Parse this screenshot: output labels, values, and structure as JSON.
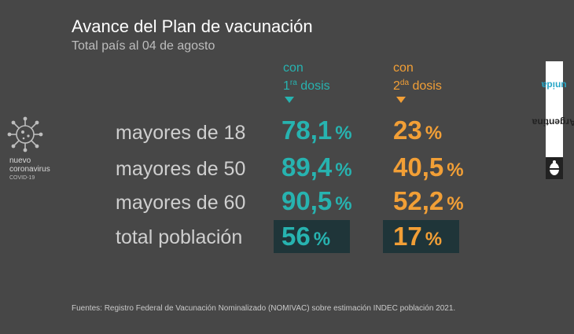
{
  "header": {
    "title": "Avance del Plan de vacunación",
    "subtitle": "Total país al 04 de agosto"
  },
  "columns": {
    "first": {
      "line1": "con",
      "num": "1",
      "sup": "ra",
      "word": "dosis"
    },
    "second": {
      "line1": "con",
      "num": "2",
      "sup": "da",
      "word": "dosis"
    }
  },
  "rows": [
    {
      "label": "mayores de 18",
      "dose1": "78,1",
      "dose2": "23"
    },
    {
      "label": "mayores de 50",
      "dose1": "89,4",
      "dose2": "40,5"
    },
    {
      "label": "mayores de 60",
      "dose1": "90,5",
      "dose2": "52,2"
    },
    {
      "label": "total población",
      "dose1": "56",
      "dose2": "17"
    }
  ],
  "percent_sign": "%",
  "logo": {
    "line1": "nuevo",
    "line2": "coronavirus",
    "line3": "COVID-19"
  },
  "brand": {
    "word1": "Argentina",
    "word2": "unida"
  },
  "footer": {
    "source": "Fuentes: Registro Federal de Vacunación Nominalizado (NOMIVAC) sobre estimación INDEC población 2021."
  },
  "colors": {
    "background": "#474747",
    "teal": "#27b3b0",
    "orange": "#f29f36",
    "highlight_box": "#1f3539"
  },
  "icons": [
    "virus-icon",
    "triangle-down-icon",
    "coat-of-arms-icon"
  ]
}
